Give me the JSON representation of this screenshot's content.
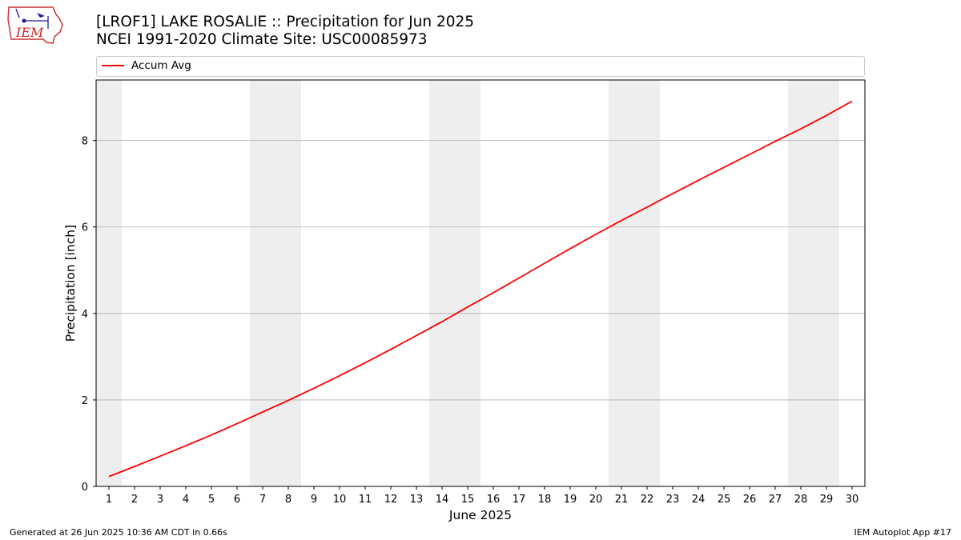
{
  "logo": {
    "text": "IEM"
  },
  "title_line1": "[LROF1] LAKE ROSALIE :: Precipitation for Jun 2025",
  "title_line2": "NCEI 1991-2020 Climate Site: USC00085973",
  "footer": {
    "left": "Generated at 26 Jun 2025 10:36 AM CDT in 0.66s",
    "right": "IEM Autoplot App #17"
  },
  "colors": {
    "line": "#ff0000",
    "weekend_band": "#eeeeee",
    "grid": "#b0b0b0"
  },
  "chart_data": {
    "type": "line",
    "xlabel": "June 2025",
    "ylabel": "Precipitation [inch]",
    "xlim": [
      0.5,
      30.5
    ],
    "ylim": [
      0,
      9.4
    ],
    "x_ticks": [
      1,
      2,
      3,
      4,
      5,
      6,
      7,
      8,
      9,
      10,
      11,
      12,
      13,
      14,
      15,
      16,
      17,
      18,
      19,
      20,
      21,
      22,
      23,
      24,
      25,
      26,
      27,
      28,
      29,
      30
    ],
    "y_ticks": [
      0,
      2,
      4,
      6,
      8
    ],
    "grid": "y",
    "legend_position": "top",
    "weekend_bands": [
      [
        0.5,
        1.5
      ],
      [
        6.5,
        8.5
      ],
      [
        13.5,
        15.5
      ],
      [
        20.5,
        22.5
      ],
      [
        27.5,
        29.5
      ]
    ],
    "series": [
      {
        "name": "Accum Avg",
        "x": [
          1,
          2,
          3,
          4,
          5,
          6,
          7,
          8,
          9,
          10,
          11,
          12,
          13,
          14,
          15,
          16,
          17,
          18,
          19,
          20,
          21,
          22,
          23,
          24,
          25,
          26,
          27,
          28,
          29,
          30
        ],
        "values": [
          0.23,
          0.46,
          0.7,
          0.94,
          1.19,
          1.45,
          1.72,
          1.99,
          2.27,
          2.56,
          2.86,
          3.17,
          3.49,
          3.81,
          4.15,
          4.48,
          4.82,
          5.16,
          5.5,
          5.83,
          6.15,
          6.46,
          6.77,
          7.08,
          7.38,
          7.68,
          7.98,
          8.27,
          8.58,
          8.91
        ]
      }
    ]
  }
}
